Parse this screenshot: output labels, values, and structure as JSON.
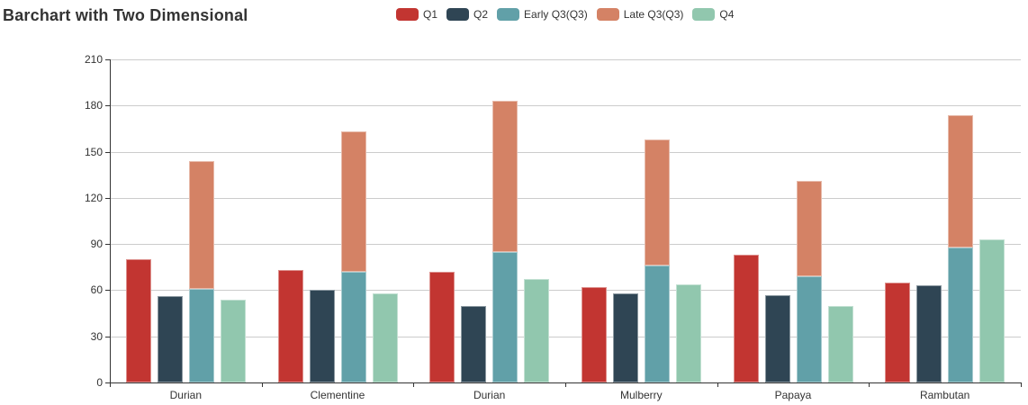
{
  "header": {
    "title": "Barchart with Two Dimensional"
  },
  "chart_data": {
    "type": "bar",
    "title": "Barchart with Two Dimensional",
    "categories": [
      "Durian",
      "Clementine",
      "Durian",
      "Mulberry",
      "Papaya",
      "Rambutan"
    ],
    "series": [
      {
        "name": "Q1",
        "color": "#c23531",
        "stack": null,
        "values": [
          80,
          73,
          72,
          62,
          83,
          65
        ]
      },
      {
        "name": "Q2",
        "color": "#2f4554",
        "stack": null,
        "values": [
          56,
          60,
          50,
          58,
          57,
          63
        ]
      },
      {
        "name": "Early Q3(Q3)",
        "color": "#61a0a8",
        "stack": "Q3",
        "values": [
          61,
          72,
          85,
          76,
          69,
          88
        ]
      },
      {
        "name": "Late Q3(Q3)",
        "color": "#d48265",
        "stack": "Q3",
        "values": [
          83,
          91,
          98,
          82,
          62,
          86
        ]
      },
      {
        "name": "Q4",
        "color": "#91c7ae",
        "stack": null,
        "values": [
          54,
          58,
          67,
          64,
          50,
          93
        ]
      }
    ],
    "stack_totals_q3": [
      144,
      163,
      183,
      158,
      131,
      174
    ],
    "xlabel": "",
    "ylabel": "",
    "y_axis": {
      "min": 0,
      "max": 210,
      "interval": 30,
      "ticks": [
        0,
        30,
        60,
        90,
        120,
        150,
        180,
        210
      ]
    },
    "grid": true,
    "legend_position": "top-center",
    "colors": {
      "axis_line": "#333333",
      "grid_line": "#cccccc",
      "text": "#333333",
      "background": "#ffffff"
    }
  }
}
